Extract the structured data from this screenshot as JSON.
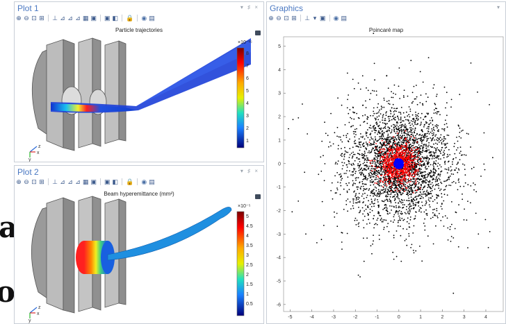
{
  "background_text": {
    "line1": "ая",
    "line2": "о"
  },
  "plot1": {
    "title": "Plot 1",
    "window_controls": "▾ ♯ ×",
    "plot_title": "Particle trajectories",
    "colorbar": {
      "exponent": "×10⁻¹⁵",
      "ticks": [
        "8",
        "7",
        "6",
        "5",
        "4",
        "3",
        "2",
        "1"
      ]
    }
  },
  "plot2": {
    "title": "Plot 2",
    "window_controls": "▾ ♯ ×",
    "plot_title": "Beam hyperemittance (mm²)",
    "colorbar": {
      "exponent": "×10⁻⁵",
      "ticks": [
        "5",
        "4.5",
        "4",
        "3.5",
        "3",
        "2.5",
        "2",
        "1.5",
        "1",
        "0.5"
      ]
    }
  },
  "graphics": {
    "title": "Graphics",
    "window_controls": "▾",
    "plot_title": "Poincaré map",
    "y_ticks": [
      "5",
      "4",
      "3",
      "2",
      "1",
      "0",
      "-1",
      "-2",
      "-3",
      "-4",
      "-5",
      "-6"
    ],
    "x_ticks": [
      "-5",
      "-4",
      "-3",
      "-2",
      "-1",
      "0",
      "1",
      "2",
      "3",
      "4"
    ]
  },
  "axes_triad": {
    "z": "z",
    "x": "x",
    "y": "y"
  },
  "toolbar": {
    "zoom_in": "⊕",
    "zoom_out": "⊖",
    "zoom_box": "⊡",
    "zoom_extents": "⊞",
    "axis": "⊥",
    "view_xy": "⊿",
    "view_yz": "⊿",
    "view_zx": "⊿",
    "grid": "▦",
    "scene_light": "▣",
    "transparency": "◧",
    "lock": "🔒",
    "snapshot": "◉",
    "print": "▤",
    "dropdown": "▾"
  },
  "colors": {
    "accent": "#4a78c2",
    "particle_inner": "#0000ff",
    "particle_mid": "#ff0000",
    "particle_outer": "#000000"
  }
}
